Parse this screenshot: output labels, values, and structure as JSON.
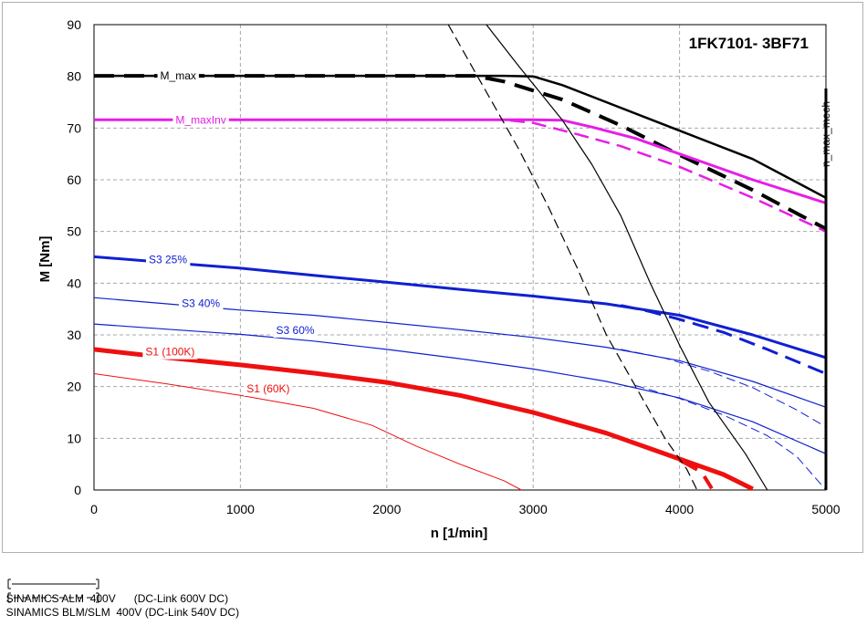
{
  "chart_data": {
    "type": "line",
    "title": "1FK7101- 3BF71",
    "xlabel": "n [1/min]",
    "ylabel": "M [Nm]",
    "xlim": [
      0,
      5000
    ],
    "ylim": [
      0,
      90
    ],
    "x_ticks": [
      "0",
      "1000",
      "2000",
      "3000",
      "4000",
      "5000"
    ],
    "y_ticks": [
      "0",
      "10",
      "20",
      "30",
      "40",
      "50",
      "60",
      "70",
      "80",
      "90"
    ],
    "grid": true,
    "vertical_marker": {
      "label": "n_max_mech",
      "x": 5000
    },
    "series": [
      {
        "name": "M_max",
        "color": "#000000",
        "style": "solid",
        "width": 2.5,
        "points": [
          [
            0,
            80.1
          ],
          [
            1000,
            80.1
          ],
          [
            2000,
            80.1
          ],
          [
            2800,
            80.1
          ],
          [
            3000,
            80
          ],
          [
            3200,
            78.3
          ],
          [
            3500,
            75
          ],
          [
            4000,
            69.5
          ],
          [
            4500,
            64
          ],
          [
            5000,
            56.5
          ]
        ]
      },
      {
        "name": "M_max BLM/SLM",
        "color": "#000000",
        "style": "dashed",
        "width": 4,
        "points": [
          [
            0,
            80.1
          ],
          [
            1000,
            80.1
          ],
          [
            2000,
            80.1
          ],
          [
            2600,
            80.1
          ],
          [
            2800,
            79
          ],
          [
            3200,
            75.5
          ],
          [
            3600,
            70.5
          ],
          [
            4000,
            64.8
          ],
          [
            4500,
            58
          ],
          [
            5000,
            50.5
          ]
        ]
      },
      {
        "name": "M_maxInv",
        "color": "#e61ee6",
        "style": "solid",
        "width": 3,
        "points": [
          [
            0,
            71.6
          ],
          [
            1000,
            71.6
          ],
          [
            2000,
            71.6
          ],
          [
            3000,
            71.6
          ],
          [
            3200,
            71.5
          ],
          [
            3400,
            70.2
          ],
          [
            3700,
            68
          ],
          [
            4000,
            65
          ],
          [
            4500,
            60
          ],
          [
            5000,
            55.5
          ]
        ]
      },
      {
        "name": "M_maxInv BLM/SLM",
        "color": "#e61ee6",
        "style": "dashed",
        "width": 2.5,
        "points": [
          [
            0,
            71.6
          ],
          [
            1000,
            71.6
          ],
          [
            2000,
            71.6
          ],
          [
            2800,
            71.6
          ],
          [
            3000,
            71
          ],
          [
            3300,
            68.8
          ],
          [
            3600,
            66.5
          ],
          [
            4000,
            62.5
          ],
          [
            4500,
            56.5
          ],
          [
            5000,
            50
          ]
        ]
      },
      {
        "name": "S3 25%",
        "color": "#1020d0",
        "style": "solid",
        "width": 3,
        "points": [
          [
            0,
            45.1
          ],
          [
            500,
            44
          ],
          [
            1000,
            42.9
          ],
          [
            1500,
            41.5
          ],
          [
            2000,
            40.2
          ],
          [
            2500,
            38.8
          ],
          [
            3000,
            37.5
          ],
          [
            3500,
            36
          ],
          [
            4000,
            33.8
          ],
          [
            4500,
            30
          ],
          [
            5000,
            25.6
          ]
        ]
      },
      {
        "name": "S3 25% BLM/SLM",
        "color": "#1020d0",
        "style": "dashed",
        "width": 3,
        "points": [
          [
            3600,
            35.7
          ],
          [
            3800,
            34.5
          ],
          [
            4000,
            33
          ],
          [
            4300,
            30.5
          ],
          [
            4600,
            27.2
          ],
          [
            5000,
            22.5
          ]
        ]
      },
      {
        "name": "S3 40%",
        "color": "#1020d0",
        "style": "solid",
        "width": 1.2,
        "points": [
          [
            0,
            37.2
          ],
          [
            500,
            36
          ],
          [
            1000,
            34.8
          ],
          [
            1500,
            33.8
          ],
          [
            2000,
            32.4
          ],
          [
            2500,
            31
          ],
          [
            3000,
            29.5
          ],
          [
            3500,
            27.6
          ],
          [
            4000,
            25
          ],
          [
            4500,
            21
          ],
          [
            5000,
            16
          ]
        ]
      },
      {
        "name": "S3 40% BLM/SLM",
        "color": "#1020d0",
        "style": "dashed",
        "width": 1,
        "points": [
          [
            3600,
            27.2
          ],
          [
            3900,
            25.5
          ],
          [
            4200,
            23
          ],
          [
            4500,
            19.8
          ],
          [
            4800,
            15.5
          ],
          [
            5000,
            12.2
          ]
        ]
      },
      {
        "name": "S3 60%",
        "color": "#1020d0",
        "style": "solid",
        "width": 1.2,
        "points": [
          [
            0,
            32.1
          ],
          [
            500,
            31.1
          ],
          [
            1000,
            30.1
          ],
          [
            1500,
            28.8
          ],
          [
            2000,
            27.2
          ],
          [
            2500,
            25.4
          ],
          [
            3000,
            23.4
          ],
          [
            3500,
            21
          ],
          [
            4000,
            17.8
          ],
          [
            4500,
            13.2
          ],
          [
            5000,
            7
          ]
        ]
      },
      {
        "name": "S3 60% BLM/SLM",
        "color": "#1020d0",
        "style": "dashed",
        "width": 1,
        "points": [
          [
            3700,
            20.2
          ],
          [
            4000,
            17.7
          ],
          [
            4300,
            14.5
          ],
          [
            4600,
            10.5
          ],
          [
            4800,
            6.5
          ],
          [
            5000,
            0
          ]
        ]
      },
      {
        "name": "S1 (100K)",
        "color": "#ee1010",
        "style": "solid",
        "width": 5,
        "points": [
          [
            0,
            27.2
          ],
          [
            500,
            25.6
          ],
          [
            1000,
            24.2
          ],
          [
            1500,
            22.6
          ],
          [
            2000,
            20.8
          ],
          [
            2500,
            18.3
          ],
          [
            3000,
            15
          ],
          [
            3500,
            11
          ],
          [
            4000,
            6
          ],
          [
            4300,
            3
          ],
          [
            4500,
            0.2
          ]
        ]
      },
      {
        "name": "S1 (100K) BLM/SLM",
        "color": "#ee1010",
        "style": "dashed",
        "width": 4,
        "points": [
          [
            4000,
            5.8
          ],
          [
            4150,
            3.5
          ],
          [
            4220,
            0.3
          ]
        ]
      },
      {
        "name": "S1 (60K)",
        "color": "#ee1010",
        "style": "solid",
        "width": 1,
        "points": [
          [
            0,
            22.5
          ],
          [
            500,
            20.5
          ],
          [
            1000,
            18.3
          ],
          [
            1500,
            15.8
          ],
          [
            1900,
            12.5
          ],
          [
            2200,
            8.5
          ],
          [
            2500,
            5
          ],
          [
            2800,
            1.8
          ],
          [
            2920,
            0
          ]
        ]
      },
      {
        "name": "Voltage limit ALM",
        "color": "#000000",
        "style": "solid",
        "width": 1.2,
        "points": [
          [
            2680,
            90
          ],
          [
            2900,
            82
          ],
          [
            3200,
            71.5
          ],
          [
            3400,
            63
          ],
          [
            3600,
            53
          ],
          [
            3800,
            40
          ],
          [
            4000,
            28
          ],
          [
            4200,
            17
          ],
          [
            4450,
            7
          ],
          [
            4600,
            0
          ]
        ]
      },
      {
        "name": "Voltage limit BLM/SLM",
        "color": "#000000",
        "style": "dashed",
        "width": 1.2,
        "points": [
          [
            2420,
            90
          ],
          [
            2600,
            81
          ],
          [
            2900,
            66
          ],
          [
            3100,
            55
          ],
          [
            3300,
            43
          ],
          [
            3500,
            30
          ],
          [
            3700,
            20
          ],
          [
            3900,
            10
          ],
          [
            4050,
            4
          ],
          [
            4120,
            0
          ]
        ]
      }
    ],
    "labels": [
      {
        "text": "M_max",
        "x": 575,
        "y": 80.1,
        "color": "#000000"
      },
      {
        "text": "M_maxInv",
        "x": 730,
        "y": 71.6,
        "color": "#e61ee6"
      },
      {
        "text": "S3 25%",
        "x": 505,
        "y": 44.6,
        "color": "#1020d0"
      },
      {
        "text": "S3 40%",
        "x": 730,
        "y": 36.1,
        "color": "#1020d0"
      },
      {
        "text": "S3 60%",
        "x": 1375,
        "y": 30.9,
        "color": "#1020d0"
      },
      {
        "text": "S1 (100K)",
        "x": 520,
        "y": 26.7,
        "color": "#ee1010"
      },
      {
        "text": "S1 (60K)",
        "x": 1190,
        "y": 19.6,
        "color": "#ee1010"
      }
    ]
  },
  "legend": {
    "solid_text": "SINAMICS ALM  400V      (DC-Link 600V DC)",
    "dashed_text": "SINAMICS BLM/SLM  400V (DC-Link 540V DC)"
  }
}
